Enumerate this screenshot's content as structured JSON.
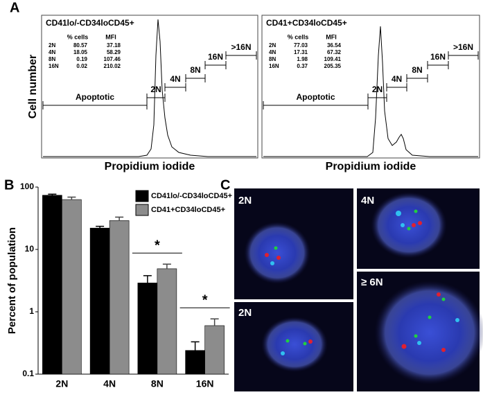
{
  "panel_labels": [
    "A",
    "B",
    "C"
  ],
  "panel_a": {
    "y_label": "Cell number",
    "x_label": "Propidium iodide",
    "plots": [
      {
        "title": "CD41lo/-CD34loCD45+",
        "header": [
          "% cells",
          "MFI"
        ],
        "rows": [
          [
            "2N",
            80.57,
            37.18
          ],
          [
            "4N",
            18.05,
            58.29
          ],
          [
            "8N",
            0.19,
            107.46
          ],
          [
            "16N",
            0.02,
            210.02
          ]
        ],
        "gates": [
          "Apoptotic",
          "2N",
          "4N",
          "8N",
          "16N",
          ">16N"
        ]
      },
      {
        "title": "CD41+CD34loCD45+",
        "header": [
          "% cells",
          "MFI"
        ],
        "rows": [
          [
            "2N",
            77.03,
            36.54
          ],
          [
            "4N",
            17.31,
            67.32
          ],
          [
            "8N",
            1.98,
            109.41
          ],
          [
            "16N",
            0.37,
            205.35
          ]
        ],
        "gates": [
          "Apoptotic",
          "2N",
          "4N",
          "8N",
          "16N",
          ">16N"
        ]
      }
    ]
  },
  "chart_data": {
    "type": "bar",
    "log_scale": true,
    "y_label": "Percent of population",
    "categories": [
      "2N",
      "4N",
      "8N",
      "16N"
    ],
    "series": [
      {
        "name": "CD41lo/-CD34loCD45+",
        "color": "#000000",
        "values": [
          74,
          22,
          2.9,
          0.24
        ],
        "errors": [
          3,
          1.5,
          0.9,
          0.09
        ]
      },
      {
        "name": "CD41+CD34loCD45+",
        "color": "#8c8c8c",
        "values": [
          63,
          29,
          4.9,
          0.6
        ],
        "errors": [
          6,
          4,
          0.9,
          0.17
        ]
      }
    ],
    "ylim": [
      0.1,
      100
    ],
    "yticks": [
      0.1,
      1,
      10,
      100
    ],
    "legend": "upper right",
    "annotations": [
      "*",
      "*"
    ]
  },
  "panel_c": {
    "labels": [
      "2N",
      "4N",
      "2N",
      "≥ 6N"
    ]
  }
}
